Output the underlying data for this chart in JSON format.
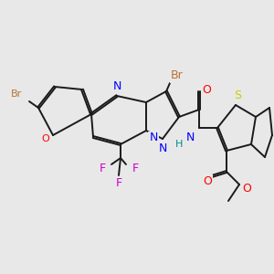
{
  "bg_color": "#e8e8e8",
  "bond_color": "#1a1a1a",
  "bond_width": 1.4,
  "dbo": 0.055,
  "atom_colors": {
    "Br": "#b87333",
    "O": "#ff0000",
    "N": "#0000ff",
    "S": "#cccc00",
    "F": "#cc00cc",
    "H": "#008b8b",
    "C": "#1a1a1a"
  }
}
